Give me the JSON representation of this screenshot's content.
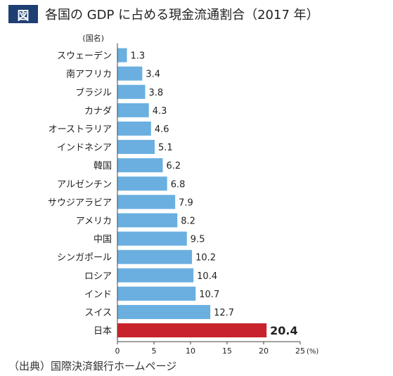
{
  "figure": {
    "badge": "図",
    "title": "各国の GDP に占める現金流通割合（2017 年）",
    "source": "（出典）国際決済銀行ホームページ"
  },
  "chart_data": {
    "type": "bar",
    "orientation": "horizontal",
    "category_axis_label": "(国名)",
    "x_unit": "(%)",
    "xlim": [
      0,
      25
    ],
    "x_ticks": [
      "0",
      "5",
      "10",
      "15",
      "20",
      "25"
    ],
    "grid": false,
    "colors": {
      "default": "#6aafe0",
      "highlight": "#c8232c"
    },
    "categories": [
      "スウェーデン",
      "南アフリカ",
      "ブラジル",
      "カナダ",
      "オーストラリア",
      "インドネシア",
      "韓国",
      "アルゼンチン",
      "サウジアラビア",
      "アメリカ",
      "中国",
      "シンガポール",
      "ロシア",
      "インド",
      "スイス",
      "日本"
    ],
    "values": [
      1.3,
      3.4,
      3.8,
      4.3,
      4.6,
      5.1,
      6.2,
      6.8,
      7.9,
      8.2,
      9.5,
      10.2,
      10.4,
      10.7,
      12.7,
      20.4
    ],
    "value_labels": [
      "1.3",
      "3.4",
      "3.8",
      "4.3",
      "4.6",
      "5.1",
      "6.2",
      "6.8",
      "7.9",
      "8.2",
      "9.5",
      "10.2",
      "10.4",
      "10.7",
      "12.7",
      "20.4"
    ],
    "highlight": [
      "日本"
    ]
  }
}
